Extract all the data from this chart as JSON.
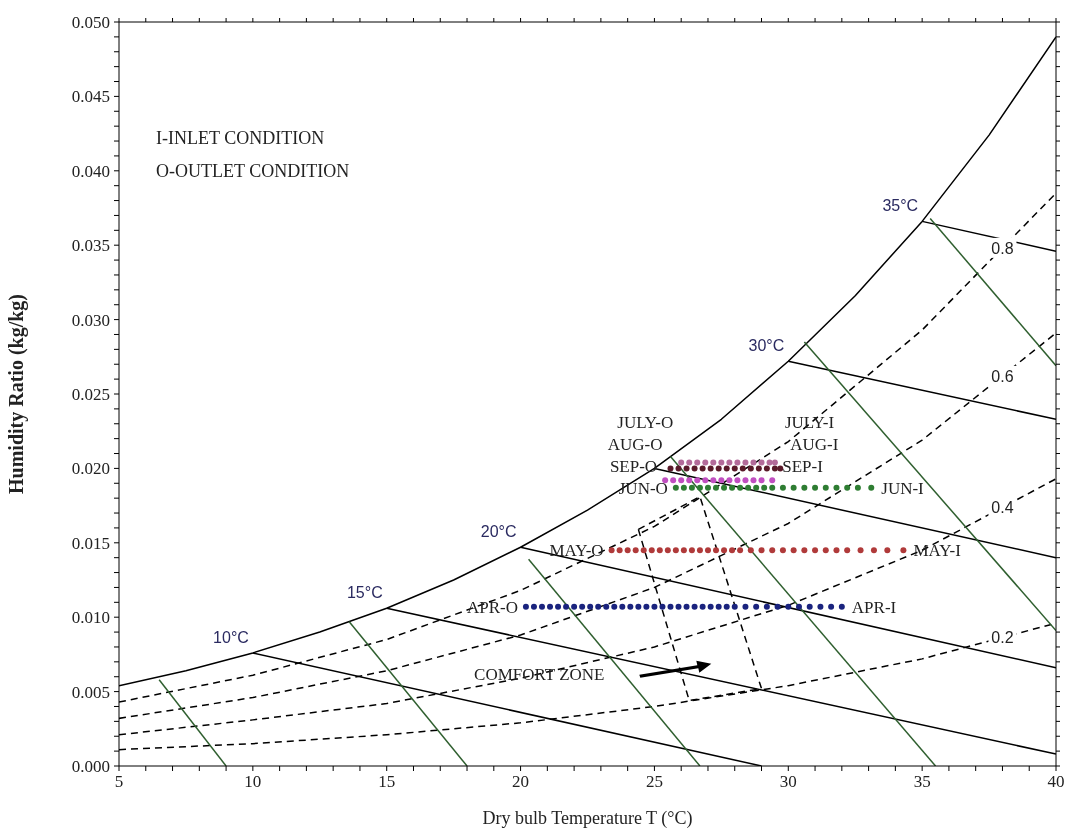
{
  "chart_data": {
    "type": "line",
    "xlabel": "Dry bulb Temperature T (°C)",
    "ylabel": "Humidity  Ratio (kg/kg)",
    "xlim": [
      5,
      40
    ],
    "ylim": [
      0,
      0.05
    ],
    "xticks": [
      5,
      {
        "value": 6,
        "label": null
      },
      {
        "value": 7,
        "label": null
      },
      {
        "value": 8,
        "label": null
      },
      {
        "value": 9,
        "label": null
      },
      10,
      {
        "value": 11,
        "label": null
      },
      {
        "value": 12,
        "label": null
      },
      {
        "value": 13,
        "label": null
      },
      {
        "value": 14,
        "label": null
      },
      15,
      {
        "value": 16,
        "label": null
      },
      {
        "value": 17,
        "label": null
      },
      {
        "value": 18,
        "label": null
      },
      {
        "value": 19,
        "label": null
      },
      20,
      {
        "value": 21,
        "label": null
      },
      {
        "value": 22,
        "label": null
      },
      {
        "value": 23,
        "label": null
      },
      {
        "value": 24,
        "label": null
      },
      25,
      {
        "value": 26,
        "label": null
      },
      {
        "value": 27,
        "label": null
      },
      {
        "value": 28,
        "label": null
      },
      {
        "value": 29,
        "label": null
      },
      30,
      {
        "value": 31,
        "label": null
      },
      {
        "value": 32,
        "label": null
      },
      {
        "value": 33,
        "label": null
      },
      {
        "value": 34,
        "label": null
      },
      35,
      {
        "value": 36,
        "label": null
      },
      {
        "value": 37,
        "label": null
      },
      {
        "value": 38,
        "label": null
      },
      {
        "value": 39,
        "label": null
      },
      40
    ],
    "yticks": [
      {
        "value": 0,
        "label": "0.000"
      },
      {
        "value": 0.001,
        "label": null
      },
      {
        "value": 0.002,
        "label": null
      },
      {
        "value": 0.003,
        "label": null
      },
      {
        "value": 0.004,
        "label": null
      },
      {
        "value": 0.005,
        "label": "0.005"
      },
      {
        "value": 0.006,
        "label": null
      },
      {
        "value": 0.007,
        "label": null
      },
      {
        "value": 0.008,
        "label": null
      },
      {
        "value": 0.009,
        "label": null
      },
      {
        "value": 0.01,
        "label": "0.010"
      },
      {
        "value": 0.011,
        "label": null
      },
      {
        "value": 0.012,
        "label": null
      },
      {
        "value": 0.013,
        "label": null
      },
      {
        "value": 0.014,
        "label": null
      },
      {
        "value": 0.015,
        "label": "0.015"
      },
      {
        "value": 0.016,
        "label": null
      },
      {
        "value": 0.017,
        "label": null
      },
      {
        "value": 0.018,
        "label": null
      },
      {
        "value": 0.019,
        "label": null
      },
      {
        "value": 0.02,
        "label": "0.020"
      },
      {
        "value": 0.021,
        "label": null
      },
      {
        "value": 0.022,
        "label": null
      },
      {
        "value": 0.023,
        "label": null
      },
      {
        "value": 0.024,
        "label": null
      },
      {
        "value": 0.025,
        "label": "0.025"
      },
      {
        "value": 0.026,
        "label": null
      },
      {
        "value": 0.027,
        "label": null
      },
      {
        "value": 0.028,
        "label": null
      },
      {
        "value": 0.029,
        "label": null
      },
      {
        "value": 0.03,
        "label": "0.030"
      },
      {
        "value": 0.031,
        "label": null
      },
      {
        "value": 0.032,
        "label": null
      },
      {
        "value": 0.033,
        "label": null
      },
      {
        "value": 0.034,
        "label": null
      },
      {
        "value": 0.035,
        "label": "0.035"
      },
      {
        "value": 0.036,
        "label": null
      },
      {
        "value": 0.037,
        "label": null
      },
      {
        "value": 0.038,
        "label": null
      },
      {
        "value": 0.039,
        "label": null
      },
      {
        "value": 0.04,
        "label": "0.040"
      },
      {
        "value": 0.041,
        "label": null
      },
      {
        "value": 0.042,
        "label": null
      },
      {
        "value": 0.043,
        "label": null
      },
      {
        "value": 0.044,
        "label": null
      },
      {
        "value": 0.045,
        "label": "0.045"
      },
      {
        "value": 0.046,
        "label": null
      },
      {
        "value": 0.047,
        "label": null
      },
      {
        "value": 0.048,
        "label": null
      },
      {
        "value": 0.049,
        "label": null
      },
      {
        "value": 0.05,
        "label": "0.050"
      }
    ],
    "series": [
      {
        "color": "#000000",
        "x": [
          5,
          7.5,
          10,
          12.5,
          15,
          17.5,
          20,
          22.5,
          25,
          27.5,
          30,
          32.5,
          35,
          37.5,
          40
        ],
        "values": [
          0.0054,
          0.0064,
          0.0076,
          0.009,
          0.0106,
          0.0125,
          0.0147,
          0.0172,
          0.02,
          0.0233,
          0.0272,
          0.0316,
          0.0366,
          0.0424,
          0.049
        ]
      },
      {
        "name": "0.8",
        "color": "#000000",
        "line_style": "dashed",
        "x": [
          5,
          10,
          15,
          20,
          25,
          30,
          35,
          40
        ],
        "values": [
          0.0043,
          0.0061,
          0.0085,
          0.0118,
          0.0161,
          0.0218,
          0.0293,
          0.0385
        ]
      },
      {
        "name": "0.6",
        "color": "#000000",
        "line_style": "dashed",
        "x": [
          5,
          10,
          15,
          20,
          25,
          30,
          35,
          40
        ],
        "values": [
          0.0032,
          0.0046,
          0.0064,
          0.0088,
          0.012,
          0.0163,
          0.0219,
          0.0291
        ]
      },
      {
        "name": "0.4",
        "color": "#000000",
        "line_style": "dashed",
        "x": [
          5,
          10,
          15,
          20,
          25,
          30,
          35,
          40
        ],
        "values": [
          0.0021,
          0.0031,
          0.0042,
          0.0059,
          0.008,
          0.0108,
          0.0145,
          0.0193
        ]
      },
      {
        "name": "0.2",
        "color": "#000000",
        "line_style": "dashed",
        "x": [
          5,
          10,
          15,
          20,
          25,
          30,
          35,
          40
        ],
        "values": [
          0.0011,
          0.0015,
          0.0021,
          0.0029,
          0.004,
          0.0054,
          0.0072,
          0.0096
        ]
      },
      {
        "color": "#000000",
        "x": [
          10,
          29
        ],
        "values": [
          0.0076,
          0
        ]
      },
      {
        "color": "#000000",
        "x": [
          15,
          40
        ],
        "values": [
          0.0106,
          0.0008
        ]
      },
      {
        "color": "#000000",
        "x": [
          20,
          40
        ],
        "values": [
          0.0147,
          0.0066
        ]
      },
      {
        "color": "#000000",
        "x": [
          25,
          40
        ],
        "values": [
          0.02,
          0.014
        ]
      },
      {
        "color": "#000000",
        "x": [
          30,
          40
        ],
        "values": [
          0.0272,
          0.0233
        ]
      },
      {
        "color": "#000000",
        "x": [
          35,
          40
        ],
        "values": [
          0.0366,
          0.0346
        ]
      },
      {
        "color": "#2f5f2f",
        "x": [
          6.5,
          9
        ],
        "values": [
          0.0058,
          0
        ]
      },
      {
        "color": "#2f5f2f",
        "x": [
          13.6,
          18
        ],
        "values": [
          0.0097,
          0
        ]
      },
      {
        "color": "#2f5f2f",
        "x": [
          20.3,
          26.7
        ],
        "values": [
          0.0139,
          0
        ]
      },
      {
        "color": "#2f5f2f",
        "x": [
          25.6,
          35.5
        ],
        "values": [
          0.0208,
          0
        ]
      },
      {
        "color": "#2f5f2f",
        "x": [
          30.6,
          40
        ],
        "values": [
          0.0285,
          0.0091
        ]
      },
      {
        "color": "#2f5f2f",
        "x": [
          35.3,
          40
        ],
        "values": [
          0.0368,
          0.0269
        ]
      },
      {
        "color": "#000000",
        "line_style": "dashed",
        "x": [
          24.4,
          26.7,
          29.0
        ],
        "values": [
          0.0159,
          0.0181,
          0.0052
        ]
      },
      {
        "color": "#000000",
        "line_style": "dashed",
        "x": [
          24.4,
          26.3,
          29.0
        ],
        "values": [
          0.0159,
          0.0044,
          0.0052
        ]
      },
      {
        "type": "scatter",
        "marker": "circle",
        "color": "#1a237e",
        "x": [
          20.2,
          20.5,
          20.8,
          21.1,
          21.4,
          21.7,
          22.0,
          22.3,
          22.6,
          22.9,
          23.2,
          23.5,
          23.8,
          24.1,
          24.4,
          24.7,
          25.0,
          25.3,
          25.6,
          25.9,
          26.2,
          26.5,
          26.8,
          27.1,
          27.4,
          27.7,
          28.0,
          28.4,
          28.8,
          29.2,
          29.6,
          30.0,
          30.4,
          30.8,
          31.2,
          31.6,
          32.0
        ],
        "values": [
          0.0107,
          0.0107,
          0.0107,
          0.0107,
          0.0107,
          0.0107,
          0.0107,
          0.0107,
          0.0107,
          0.0107,
          0.0107,
          0.0107,
          0.0107,
          0.0107,
          0.0107,
          0.0107,
          0.0107,
          0.0107,
          0.0107,
          0.0107,
          0.0107,
          0.0107,
          0.0107,
          0.0107,
          0.0107,
          0.0107,
          0.0107,
          0.0107,
          0.0107,
          0.0107,
          0.0107,
          0.0107,
          0.0107,
          0.0107,
          0.0107,
          0.0107,
          0.0107
        ]
      },
      {
        "type": "scatter",
        "marker": "circle",
        "color": "#b03a3a",
        "x": [
          23.4,
          23.7,
          24.0,
          24.3,
          24.6,
          24.9,
          25.2,
          25.5,
          25.8,
          26.1,
          26.4,
          26.7,
          27.0,
          27.3,
          27.6,
          27.9,
          28.2,
          28.6,
          29.0,
          29.4,
          29.8,
          30.2,
          30.6,
          31.0,
          31.4,
          31.8,
          32.2,
          32.7,
          33.2,
          33.7,
          34.3
        ],
        "values": [
          0.0145,
          0.0145,
          0.0145,
          0.0145,
          0.0145,
          0.0145,
          0.0145,
          0.0145,
          0.0145,
          0.0145,
          0.0145,
          0.0145,
          0.0145,
          0.0145,
          0.0145,
          0.0145,
          0.0145,
          0.0145,
          0.0145,
          0.0145,
          0.0145,
          0.0145,
          0.0145,
          0.0145,
          0.0145,
          0.0145,
          0.0145,
          0.0145,
          0.0145,
          0.0145,
          0.0145
        ]
      },
      {
        "type": "scatter",
        "marker": "circle",
        "color": "#2e7d32",
        "x": [
          25.8,
          26.1,
          26.4,
          26.7,
          27.0,
          27.3,
          27.6,
          27.9,
          28.2,
          28.5,
          28.8,
          29.1,
          29.4,
          29.8,
          30.2,
          30.6,
          31.0,
          31.4,
          31.8,
          32.2,
          32.6,
          33.1
        ],
        "values": [
          0.0187,
          0.0187,
          0.0187,
          0.0187,
          0.0187,
          0.0187,
          0.0187,
          0.0187,
          0.0187,
          0.0187,
          0.0187,
          0.0187,
          0.0187,
          0.0187,
          0.0187,
          0.0187,
          0.0187,
          0.0187,
          0.0187,
          0.0187,
          0.0187,
          0.0187
        ]
      },
      {
        "type": "scatter",
        "marker": "circle",
        "color": "#c04fc0",
        "x": [
          25.4,
          25.7,
          26.0,
          26.3,
          26.6,
          26.9,
          27.2,
          27.5,
          27.8,
          28.1,
          28.4,
          28.7,
          29.0,
          29.4
        ],
        "values": [
          0.0192,
          0.0192,
          0.0192,
          0.0192,
          0.0192,
          0.0192,
          0.0192,
          0.0192,
          0.0192,
          0.0192,
          0.0192,
          0.0192,
          0.0192,
          0.0192
        ]
      },
      {
        "type": "scatter",
        "marker": "circle",
        "color": "#5a1a2a",
        "x": [
          25.6,
          25.9,
          26.2,
          26.5,
          26.8,
          27.1,
          27.4,
          27.7,
          28.0,
          28.3,
          28.6,
          28.9,
          29.2,
          29.5,
          29.7
        ],
        "values": [
          0.02,
          0.02,
          0.02,
          0.02,
          0.02,
          0.02,
          0.02,
          0.02,
          0.02,
          0.02,
          0.02,
          0.02,
          0.02,
          0.02,
          0.02
        ]
      },
      {
        "type": "scatter",
        "marker": "circle",
        "color": "#b36b9a",
        "x": [
          26.0,
          26.3,
          26.6,
          26.9,
          27.2,
          27.5,
          27.8,
          28.1,
          28.4,
          28.7,
          29.0,
          29.3,
          29.5
        ],
        "values": [
          0.0204,
          0.0204,
          0.0204,
          0.0204,
          0.0204,
          0.0204,
          0.0204,
          0.0204,
          0.0204,
          0.0204,
          0.0204,
          0.0204,
          0.0204
        ]
      }
    ],
    "annotations": [
      "I-INLET CONDITION",
      "O-OUTLET CONDITION",
      {
        "text": "10°C",
        "x": 10,
        "y": 0.0076
      },
      {
        "text": "15°C",
        "x": 15,
        "y": 0.0106
      },
      {
        "text": "20°C",
        "x": 20,
        "y": 0.0147
      },
      {
        "text": "30°C",
        "x": 30,
        "y": 0.0272
      },
      {
        "text": "35°C",
        "x": 35,
        "y": 0.0366
      },
      {
        "text": "JULY-O",
        "x": 26.0,
        "y": 0.0204
      },
      {
        "text": "AUG-O",
        "x": 25.6,
        "y": 0.02
      },
      {
        "text": "SEP-O",
        "x": 25.4,
        "y": 0.0192
      },
      {
        "text": "JUN-O",
        "x": 25.8,
        "y": 0.0187
      },
      {
        "text": "MAY-O",
        "x": 23.4,
        "y": 0.0145
      },
      {
        "text": "APR-O",
        "x": 20.2,
        "y": 0.0107
      },
      {
        "text": "AUG-I",
        "x": 29.7,
        "y": 0.02
      },
      {
        "text": "JULY-I",
        "x": 29.5,
        "y": 0.0204
      },
      {
        "text": "SEP-I",
        "x": 29.4,
        "y": 0.0192
      },
      {
        "text": "JUN-I",
        "x": 33.1,
        "y": 0.0187
      },
      {
        "text": "MAY-I",
        "x": 34.3,
        "y": 0.0145
      },
      {
        "text": "APR-I",
        "x": 32.0,
        "y": 0.0107
      },
      {
        "text": "COMFORT ZONE",
        "x": 20.7,
        "y": 0.0062
      }
    ]
  }
}
